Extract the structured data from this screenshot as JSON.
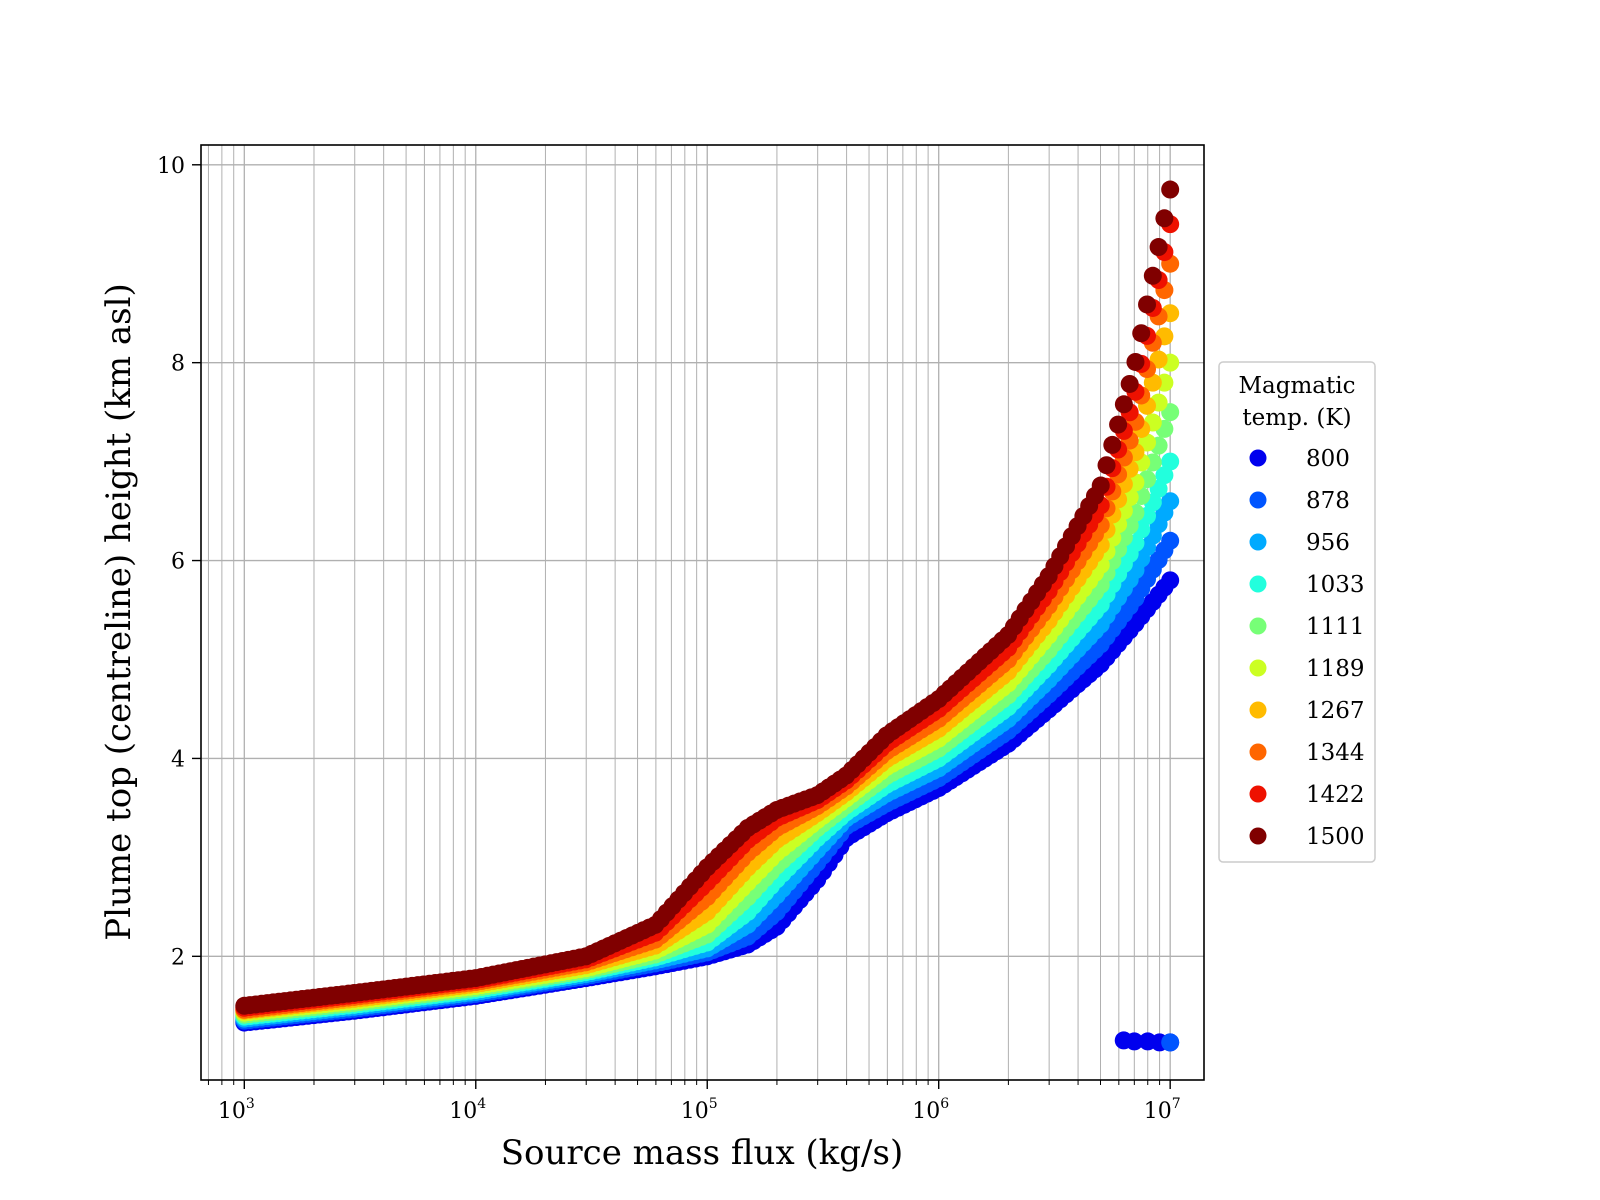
{
  "chart_data": {
    "type": "scatter",
    "title": "",
    "xlabel": "Source mass flux (kg/s)",
    "ylabel": "Plume top (centreline) height (km asl)",
    "xscale": "log",
    "xlim": [
      650,
      14000000
    ],
    "ylim": [
      0.75,
      10.2
    ],
    "x_ticks": [
      1000,
      10000,
      100000,
      1000000,
      10000000
    ],
    "x_tick_labels": [
      {
        "base": "10",
        "exp": "3"
      },
      {
        "base": "10",
        "exp": "4"
      },
      {
        "base": "10",
        "exp": "5"
      },
      {
        "base": "10",
        "exp": "6"
      },
      {
        "base": "10",
        "exp": "7"
      }
    ],
    "y_ticks": [
      2,
      4,
      6,
      8,
      10
    ],
    "y_tick_labels": [
      "2",
      "4",
      "6",
      "8",
      "10"
    ],
    "grid": true,
    "grid_minor_x": true,
    "legend_title_lines": [
      "Magmatic",
      "temp. (K)"
    ],
    "legend_position": "right",
    "series": [
      {
        "name": "800",
        "color": "#0000ee",
        "x": [
          1000,
          3000,
          10000,
          30000,
          60000,
          100000,
          150000,
          200000,
          300000,
          400000,
          600000,
          1000000,
          2000000,
          3000000,
          5000000,
          7000000,
          10000000
        ],
        "y": [
          1.33,
          1.45,
          1.6,
          1.78,
          1.9,
          2.0,
          2.12,
          2.3,
          2.78,
          3.2,
          3.45,
          3.7,
          4.15,
          4.5,
          4.95,
          5.35,
          5.8
        ],
        "x_low": [
          6300000,
          7000000,
          8000000,
          9000000,
          10000000
        ],
        "y_low": [
          1.15,
          1.14,
          1.14,
          1.13,
          1.13
        ]
      },
      {
        "name": "878",
        "color": "#0055ff",
        "x": [
          1000,
          3000,
          10000,
          30000,
          60000,
          100000,
          150000,
          200000,
          300000,
          400000,
          600000,
          1000000,
          2000000,
          3000000,
          5000000,
          7000000,
          10000000
        ],
        "y": [
          1.35,
          1.47,
          1.62,
          1.8,
          1.93,
          2.04,
          2.2,
          2.45,
          2.95,
          3.32,
          3.55,
          3.8,
          4.28,
          4.65,
          5.15,
          5.6,
          6.2
        ],
        "x_low": [
          10000000
        ],
        "y_low": [
          1.13
        ]
      },
      {
        "name": "956",
        "color": "#00aaff",
        "x": [
          1000,
          3000,
          10000,
          30000,
          60000,
          100000,
          150000,
          200000,
          300000,
          400000,
          600000,
          1000000,
          2000000,
          3000000,
          5000000,
          7000000,
          10000000
        ],
        "y": [
          1.37,
          1.49,
          1.64,
          1.82,
          1.96,
          2.08,
          2.32,
          2.62,
          3.08,
          3.4,
          3.65,
          3.9,
          4.4,
          4.8,
          5.35,
          5.88,
          6.6
        ],
        "x_low": [],
        "y_low": []
      },
      {
        "name": "1033",
        "color": "#22ffdd",
        "x": [
          1000,
          3000,
          10000,
          30000,
          60000,
          100000,
          150000,
          200000,
          300000,
          400000,
          600000,
          1000000,
          2000000,
          3000000,
          5000000,
          7000000,
          10000000
        ],
        "y": [
          1.39,
          1.51,
          1.66,
          1.84,
          1.99,
          2.14,
          2.45,
          2.78,
          3.2,
          3.46,
          3.74,
          4.0,
          4.52,
          4.95,
          5.55,
          6.15,
          7.0
        ],
        "x_low": [],
        "y_low": []
      },
      {
        "name": "1111",
        "color": "#77ff77",
        "x": [
          1000,
          3000,
          10000,
          30000,
          60000,
          100000,
          150000,
          200000,
          300000,
          400000,
          600000,
          1000000,
          2000000,
          3000000,
          5000000,
          7000000,
          10000000
        ],
        "y": [
          1.41,
          1.53,
          1.68,
          1.86,
          2.02,
          2.22,
          2.6,
          2.92,
          3.3,
          3.53,
          3.83,
          4.1,
          4.64,
          5.1,
          5.75,
          6.45,
          7.5
        ],
        "x_low": [],
        "y_low": []
      },
      {
        "name": "1189",
        "color": "#ccff22",
        "x": [
          1000,
          3000,
          10000,
          30000,
          60000,
          100000,
          150000,
          200000,
          300000,
          400000,
          600000,
          1000000,
          2000000,
          3000000,
          5000000,
          7000000,
          10000000
        ],
        "y": [
          1.43,
          1.55,
          1.7,
          1.88,
          2.06,
          2.32,
          2.75,
          3.05,
          3.38,
          3.6,
          3.92,
          4.2,
          4.76,
          5.25,
          5.95,
          6.75,
          8.0
        ],
        "x_low": [],
        "y_low": []
      },
      {
        "name": "1267",
        "color": "#ffbb00",
        "x": [
          1000,
          3000,
          10000,
          30000,
          60000,
          100000,
          150000,
          200000,
          300000,
          400000,
          600000,
          1000000,
          2000000,
          3000000,
          5000000,
          7000000,
          10000000
        ],
        "y": [
          1.45,
          1.57,
          1.72,
          1.91,
          2.11,
          2.45,
          2.9,
          3.18,
          3.45,
          3.66,
          4.0,
          4.3,
          4.88,
          5.4,
          6.15,
          7.05,
          8.5
        ],
        "x_low": [],
        "y_low": []
      },
      {
        "name": "1344",
        "color": "#ff6600",
        "x": [
          1000,
          3000,
          10000,
          30000,
          60000,
          100000,
          150000,
          200000,
          300000,
          400000,
          600000,
          1000000,
          2000000,
          3000000,
          5000000,
          7000000,
          10000000
        ],
        "y": [
          1.46,
          1.59,
          1.74,
          1.94,
          2.17,
          2.6,
          3.05,
          3.3,
          3.52,
          3.72,
          4.08,
          4.4,
          5.0,
          5.55,
          6.35,
          7.35,
          9.0
        ],
        "x_low": [],
        "y_low": []
      },
      {
        "name": "1422",
        "color": "#ee1100",
        "x": [
          1000,
          3000,
          10000,
          30000,
          60000,
          100000,
          150000,
          200000,
          300000,
          400000,
          600000,
          1000000,
          2000000,
          3000000,
          5000000,
          7000000,
          10000000
        ],
        "y": [
          1.48,
          1.61,
          1.76,
          1.97,
          2.24,
          2.75,
          3.18,
          3.4,
          3.58,
          3.78,
          4.16,
          4.5,
          5.12,
          5.7,
          6.55,
          7.65,
          9.4
        ],
        "x_low": [],
        "y_low": []
      },
      {
        "name": "1500",
        "color": "#800000",
        "x": [
          1000,
          3000,
          10000,
          30000,
          60000,
          100000,
          150000,
          200000,
          300000,
          400000,
          600000,
          1000000,
          2000000,
          3000000,
          5000000,
          7000000,
          10000000
        ],
        "y": [
          1.5,
          1.63,
          1.78,
          2.0,
          2.32,
          2.9,
          3.3,
          3.48,
          3.63,
          3.83,
          4.24,
          4.6,
          5.25,
          5.85,
          6.75,
          7.95,
          9.75
        ],
        "x_low": [],
        "y_low": []
      }
    ]
  }
}
